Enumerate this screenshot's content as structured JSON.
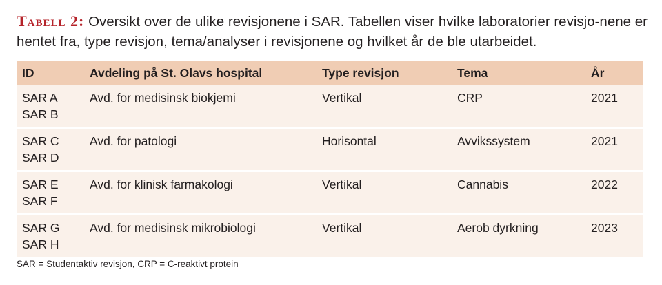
{
  "caption": {
    "label": "Tabell 2:",
    "text": "Oversikt over de ulike revisjonene i SAR. Tabellen viser hvilke laboratorier revisjo-nene er hentet fra, type revisjon, tema/analyser i revisjonene og hvilket år de ble utarbeidet."
  },
  "table": {
    "headers": [
      "ID",
      "Avdeling på St. Olavs hospital",
      "Type revisjon",
      "Tema",
      "År"
    ],
    "rows": [
      {
        "ids": [
          "SAR A",
          "SAR B"
        ],
        "avdeling": "Avd. for medisinsk biokjemi",
        "type": "Vertikal",
        "tema": "CRP",
        "aar": "2021"
      },
      {
        "ids": [
          "SAR C",
          "SAR D"
        ],
        "avdeling": "Avd. for patologi",
        "type": "Horisontal",
        "tema": "Avvikssystem",
        "aar": "2021"
      },
      {
        "ids": [
          "SAR E",
          "SAR F"
        ],
        "avdeling": "Avd. for klinisk farmakologi",
        "type": "Vertikal",
        "tema": "Cannabis",
        "aar": "2022"
      },
      {
        "ids": [
          "SAR G",
          "SAR H"
        ],
        "avdeling": "Avd. for medisinsk mikrobiologi",
        "type": "Vertikal",
        "tema": "Aerob dyrkning",
        "aar": "2023"
      }
    ]
  },
  "footnote": "SAR = Studentaktiv revisjon, CRP = C-reaktivt protein",
  "colors": {
    "caption_label": "#b5232a",
    "header_bg": "#f0cdb4",
    "row_bg": "#faf1ea",
    "text": "#231f20"
  }
}
